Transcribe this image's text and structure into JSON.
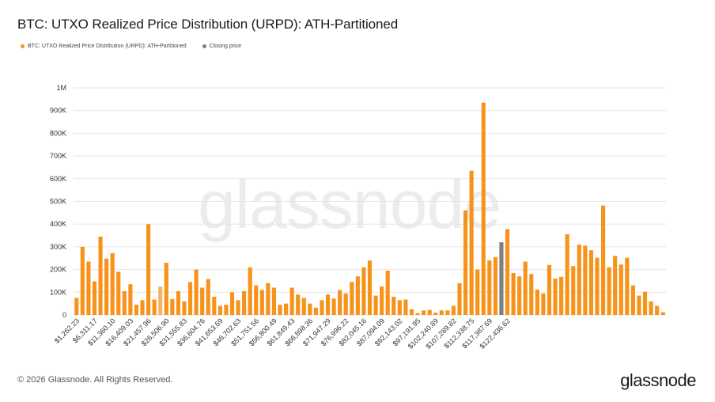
{
  "title": "BTC: UTXO Realized Price Distribution (URPD): ATH-Partitioned",
  "legend": [
    {
      "label": "BTC: UTXO Realized Price Distribution (URPD): ATH-Partitioned",
      "color": "#f7931a"
    },
    {
      "label": "Closing price",
      "color": "#7f7f7f"
    }
  ],
  "watermark": "glassnode",
  "footer": "© 2026 Glassnode. All Rights Reserved.",
  "logo": "glassnode",
  "chart_data": {
    "type": "bar",
    "title": "BTC: UTXO Realized Price Distribution (URPD): ATH-Partitioned",
    "xlabel": "",
    "ylabel": "",
    "ylim": [
      0,
      1000000
    ],
    "yticks": [
      {
        "value": 0,
        "label": "0"
      },
      {
        "value": 100000,
        "label": "100K"
      },
      {
        "value": 200000,
        "label": "200K"
      },
      {
        "value": 300000,
        "label": "300K"
      },
      {
        "value": 400000,
        "label": "400K"
      },
      {
        "value": 500000,
        "label": "500K"
      },
      {
        "value": 600000,
        "label": "600K"
      },
      {
        "value": 700000,
        "label": "700K"
      },
      {
        "value": 800000,
        "label": "800K"
      },
      {
        "value": 900000,
        "label": "900K"
      },
      {
        "value": 1000000,
        "label": "1M"
      }
    ],
    "xtick_labels": [
      "$1,262.23",
      "$6,311.17",
      "$11,360.10",
      "$16,409.03",
      "$21,457.96",
      "$26,506.90",
      "$31,555.83",
      "$36,604.76",
      "$41,653.69",
      "$46,702.63",
      "$51,751.56",
      "$56,800.49",
      "$61,849.43",
      "$66,898.36",
      "$71,947.29",
      "$76,996.22",
      "$82,045.16",
      "$87,094.09",
      "$92,143.02",
      "$97,191.95",
      "$102,240.89",
      "$107,289.82",
      "$112,338.75",
      "$117,387.69",
      "$122,436.62"
    ],
    "xtick_every": 3,
    "closing_price_index": 71,
    "highlight_index": 14,
    "series": [
      {
        "name": "BTC: UTXO Realized Price Distribution (URPD): ATH-Partitioned",
        "color": "#f7931a",
        "values": [
          75000,
          300000,
          235000,
          148000,
          345000,
          248000,
          272000,
          190000,
          105000,
          135000,
          45000,
          65000,
          400000,
          68000,
          125000,
          230000,
          70000,
          105000,
          60000,
          145000,
          200000,
          120000,
          158000,
          80000,
          40000,
          45000,
          100000,
          65000,
          105000,
          210000,
          130000,
          110000,
          140000,
          120000,
          45000,
          50000,
          120000,
          90000,
          75000,
          50000,
          32000,
          65000,
          90000,
          72000,
          110000,
          95000,
          145000,
          170000,
          210000,
          240000,
          85000,
          125000,
          195000,
          80000,
          65000,
          68000,
          25000,
          8000,
          20000,
          22000,
          10000,
          20000,
          20000,
          40000,
          140000,
          460000,
          635000,
          200000,
          935000,
          240000,
          255000,
          320000,
          378000,
          185000,
          170000,
          235000,
          180000,
          112000,
          95000,
          220000,
          160000,
          168000,
          355000,
          215000,
          310000,
          305000,
          285000,
          252000,
          482000,
          210000,
          260000,
          222000,
          252000,
          130000,
          85000,
          102000,
          60000,
          40000,
          12000
        ]
      }
    ]
  }
}
